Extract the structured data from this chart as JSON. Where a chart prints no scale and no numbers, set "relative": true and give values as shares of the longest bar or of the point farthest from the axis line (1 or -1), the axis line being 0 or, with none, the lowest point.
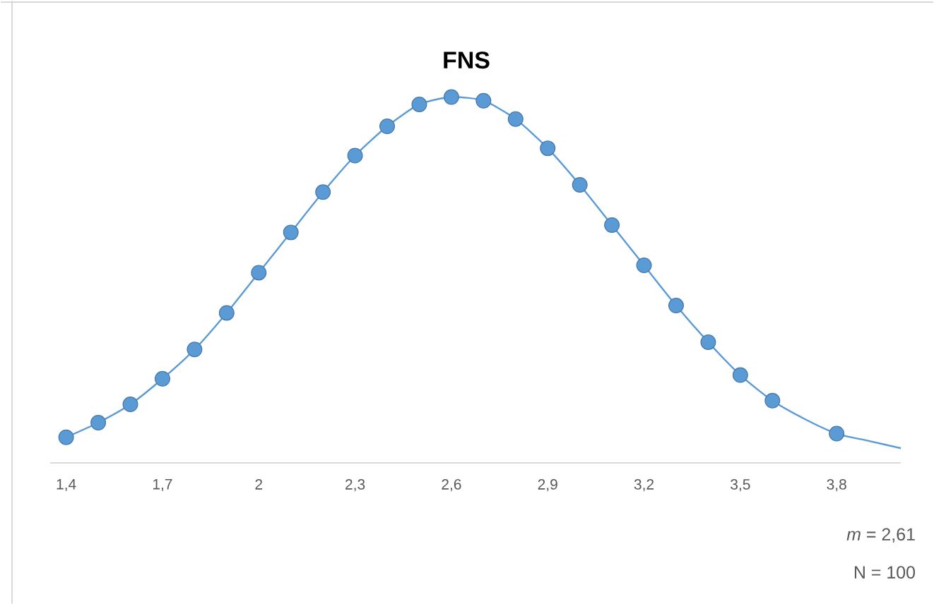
{
  "chart_data": {
    "type": "scatter",
    "title": "FNS",
    "relative": true,
    "line_style": "solid",
    "xlim": [
      1.35,
      4.0
    ],
    "xticks": [
      {
        "value": 1.4,
        "label": "1,4"
      },
      {
        "value": 1.7,
        "label": "1,7"
      },
      {
        "value": 2.0,
        "label": "2"
      },
      {
        "value": 2.3,
        "label": "2,3"
      },
      {
        "value": 2.6,
        "label": "2,6"
      },
      {
        "value": 2.9,
        "label": "2,9"
      },
      {
        "value": 3.2,
        "label": "3,2"
      },
      {
        "value": 3.5,
        "label": "3,5"
      },
      {
        "value": 3.8,
        "label": "3,8"
      }
    ],
    "series": [
      {
        "type": "line",
        "marker": "none",
        "color": "#5b9bd5",
        "x": [
          1.4,
          1.5,
          1.6,
          1.7,
          1.8,
          1.9,
          2.0,
          2.1,
          2.2,
          2.3,
          2.4,
          2.5,
          2.6,
          2.7,
          2.8,
          2.9,
          3.0,
          3.1,
          3.2,
          3.3,
          3.4,
          3.5,
          3.6,
          3.7,
          3.8,
          3.9,
          4.0
        ],
        "values": [
          0.07,
          0.11,
          0.16,
          0.23,
          0.31,
          0.41,
          0.52,
          0.63,
          0.74,
          0.84,
          0.92,
          0.98,
          1.0,
          0.99,
          0.94,
          0.86,
          0.76,
          0.65,
          0.54,
          0.43,
          0.33,
          0.24,
          0.17,
          0.12,
          0.08,
          0.06,
          0.04
        ]
      },
      {
        "marker": "circle",
        "color": "#5b9bd5",
        "x": [
          1.4,
          1.5,
          1.6,
          1.7,
          1.8,
          1.9,
          2.0,
          2.1,
          2.2,
          2.3,
          2.4,
          2.5,
          2.6,
          2.7,
          2.8,
          2.9,
          3.0,
          3.1,
          3.2,
          3.3,
          3.4,
          3.5,
          3.6,
          3.8
        ],
        "values": [
          0.07,
          0.11,
          0.16,
          0.23,
          0.31,
          0.41,
          0.52,
          0.63,
          0.74,
          0.84,
          0.92,
          0.98,
          1.0,
          0.99,
          0.94,
          0.86,
          0.76,
          0.65,
          0.54,
          0.43,
          0.33,
          0.24,
          0.17,
          0.08
        ]
      }
    ],
    "annotations": [
      "*m* = 2,61",
      "N = 100"
    ]
  }
}
